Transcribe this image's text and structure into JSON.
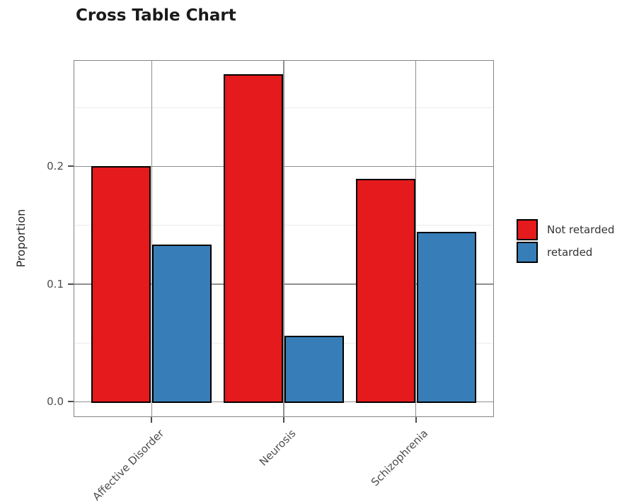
{
  "title": "Cross Table Chart",
  "chart_data": {
    "type": "bar",
    "title": "Cross Table Chart",
    "xlabel": "",
    "ylabel": "Proportion",
    "categories": [
      "Affective Disorder",
      "Neurosis",
      "Schizophrenia"
    ],
    "series": [
      {
        "name": "Not retarded",
        "color": "#E41A1C",
        "values": [
          0.2,
          0.2778,
          0.1889
        ]
      },
      {
        "name": "retarded",
        "color": "#377EB8",
        "values": [
          0.1333,
          0.0556,
          0.1444
        ]
      }
    ],
    "ylim": [
      -0.014,
      0.292
    ],
    "yticks_major": [
      0.0,
      0.1,
      0.2
    ],
    "ytick_labels": [
      "0.0",
      "0.1",
      "0.2"
    ],
    "yticks_minor": [
      0.05,
      0.15,
      0.25
    ],
    "grid": "on",
    "legend_position": "right",
    "bar_edge_color": "#000000",
    "panel_border_color": "#858585",
    "major_grid_color": "#8f8f8f",
    "minor_grid_color": "#ebebeb",
    "tick_label_color": "#4d4d4d"
  }
}
